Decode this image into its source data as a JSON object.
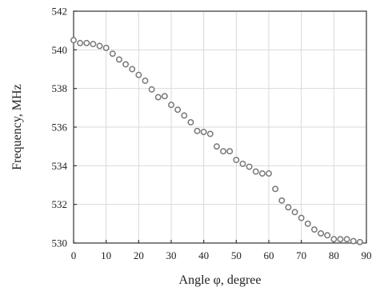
{
  "chart_data": {
    "type": "scatter",
    "xlabel": "Angle φ, degree",
    "ylabel": "Frequency, MHz",
    "xlim": [
      0,
      90
    ],
    "ylim": [
      530,
      542
    ],
    "x_ticks": [
      0,
      10,
      20,
      30,
      40,
      50,
      60,
      70,
      80,
      90
    ],
    "y_ticks": [
      530,
      532,
      534,
      536,
      538,
      540,
      542
    ],
    "grid": true,
    "marker": "open-circle",
    "marker_color": "#777777",
    "series": [
      {
        "x": [
          0,
          2,
          4,
          6,
          8,
          10,
          12,
          14,
          16,
          18,
          20,
          22,
          24,
          26,
          28,
          30,
          32,
          34,
          36,
          38,
          40,
          42,
          44,
          46,
          48,
          50,
          52,
          54,
          56,
          58,
          60,
          62,
          64,
          66,
          68,
          70,
          72,
          74,
          76,
          78,
          80,
          82,
          84,
          86,
          88
        ],
        "y": [
          540.5,
          540.35,
          540.35,
          540.3,
          540.2,
          540.1,
          539.8,
          539.5,
          539.25,
          539.0,
          538.7,
          538.4,
          537.95,
          537.55,
          537.6,
          537.15,
          536.9,
          536.6,
          536.25,
          535.8,
          535.75,
          535.65,
          535.0,
          534.75,
          534.75,
          534.3,
          534.1,
          533.95,
          533.7,
          533.6,
          533.6,
          532.8,
          532.2,
          531.85,
          531.6,
          531.3,
          531.0,
          530.7,
          530.5,
          530.4,
          530.2,
          530.2,
          530.2,
          530.1,
          530.05
        ]
      }
    ]
  }
}
